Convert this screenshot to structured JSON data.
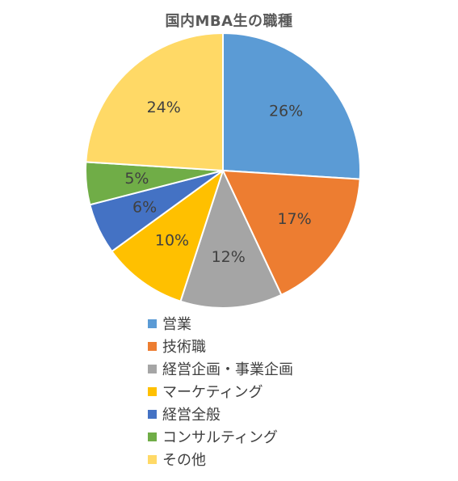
{
  "chart_data": {
    "type": "pie",
    "title": "国内MBA生の職種",
    "categories": [
      "営業",
      "技術職",
      "経営企画・事業企画",
      "マーケティング",
      "経営全般",
      "コンサルティング",
      "その他"
    ],
    "values": [
      26,
      17,
      12,
      10,
      6,
      5,
      24
    ],
    "labels": [
      "26%",
      "17%",
      "12%",
      "10%",
      "6%",
      "5%",
      "24%"
    ],
    "colors": [
      "#5B9BD5",
      "#ED7D31",
      "#A5A5A5",
      "#FFC000",
      "#4472C4",
      "#70AD47",
      "#FFD966"
    ],
    "legend_position": "bottom"
  }
}
